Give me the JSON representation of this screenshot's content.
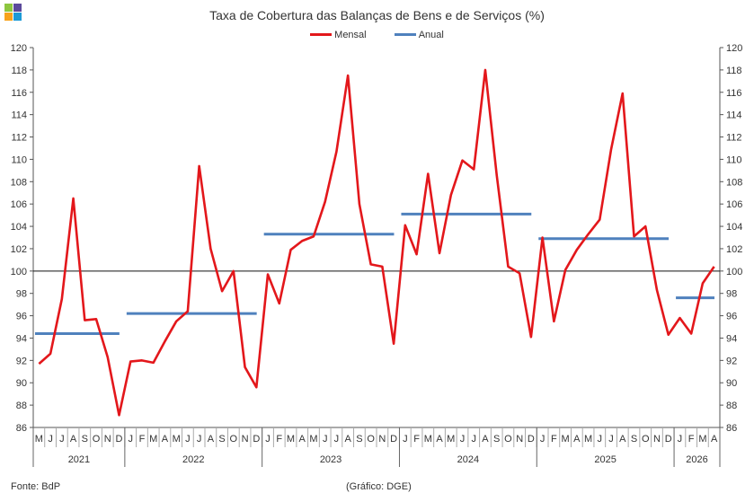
{
  "logo": {
    "colors": [
      "#8dc63f",
      "#5b4a9b",
      "#f7a21b",
      "#1c9ad6"
    ]
  },
  "footer": {
    "source": "Fonte: BdP",
    "credit": "(Gráfico: DGE)"
  },
  "chart_data": {
    "type": "line",
    "title": "Taxa de Cobertura das Balanças de Bens e de Serviços (%)",
    "xlabel": "",
    "ylabel": "",
    "ylim": [
      86,
      120
    ],
    "yticks": [
      86,
      88,
      90,
      92,
      94,
      96,
      98,
      100,
      102,
      104,
      106,
      108,
      110,
      112,
      114,
      116,
      118,
      120
    ],
    "reference_line": 100,
    "legend_position": "top-center",
    "month_labels": [
      "M",
      "J",
      "J",
      "A",
      "S",
      "O",
      "N",
      "D",
      "J",
      "F",
      "M",
      "A",
      "M",
      "J",
      "J",
      "A",
      "S",
      "O",
      "N",
      "D",
      "J",
      "F",
      "M",
      "A",
      "M",
      "J",
      "J",
      "A",
      "S",
      "O",
      "N",
      "D",
      "J",
      "F",
      "M",
      "A",
      "M",
      "J",
      "J",
      "A",
      "S",
      "O",
      "N",
      "D",
      "J",
      "F",
      "M",
      "A",
      "M",
      "J",
      "J",
      "A",
      "S",
      "O",
      "N",
      "D",
      "J",
      "F",
      "M",
      "A"
    ],
    "years": [
      {
        "label": "2021",
        "start": 0,
        "end": 7
      },
      {
        "label": "2022",
        "start": 8,
        "end": 19
      },
      {
        "label": "2023",
        "start": 20,
        "end": 31
      },
      {
        "label": "2024",
        "start": 32,
        "end": 43
      },
      {
        "label": "2025",
        "start": 44,
        "end": 55
      },
      {
        "label": "2026",
        "start": 56,
        "end": 59
      }
    ],
    "series": [
      {
        "name": "Mensal",
        "color": "#e3171b",
        "values": [
          91.7,
          92.6,
          97.5,
          106.5,
          95.6,
          95.7,
          92.3,
          87.1,
          91.9,
          92.0,
          91.8,
          93.7,
          95.5,
          96.4,
          109.4,
          102.0,
          98.2,
          100.0,
          91.4,
          89.6,
          99.7,
          97.1,
          101.9,
          102.7,
          103.1,
          106.2,
          110.7,
          117.5,
          106.0,
          100.6,
          100.4,
          93.5,
          104.1,
          101.5,
          108.7,
          101.6,
          106.8,
          109.9,
          109.1,
          118.0,
          108.6,
          100.4,
          99.8,
          94.1,
          103.0,
          95.5,
          100.1,
          101.9,
          103.3,
          104.6,
          110.9,
          115.9,
          103.1,
          104.0,
          98.3,
          94.3,
          95.8,
          94.4,
          98.9,
          100.4
        ]
      },
      {
        "name": "Anual",
        "color": "#4f81bd",
        "segments": [
          {
            "year": "2021",
            "start": 0,
            "end": 7,
            "value": 94.4
          },
          {
            "year": "2022",
            "start": 8,
            "end": 19,
            "value": 96.2
          },
          {
            "year": "2023",
            "start": 20,
            "end": 31,
            "value": 103.3
          },
          {
            "year": "2024",
            "start": 32,
            "end": 43,
            "value": 105.1
          },
          {
            "year": "2025",
            "start": 44,
            "end": 55,
            "value": 102.9
          },
          {
            "year": "2026",
            "start": 56,
            "end": 59,
            "value": 97.6
          }
        ]
      }
    ]
  }
}
